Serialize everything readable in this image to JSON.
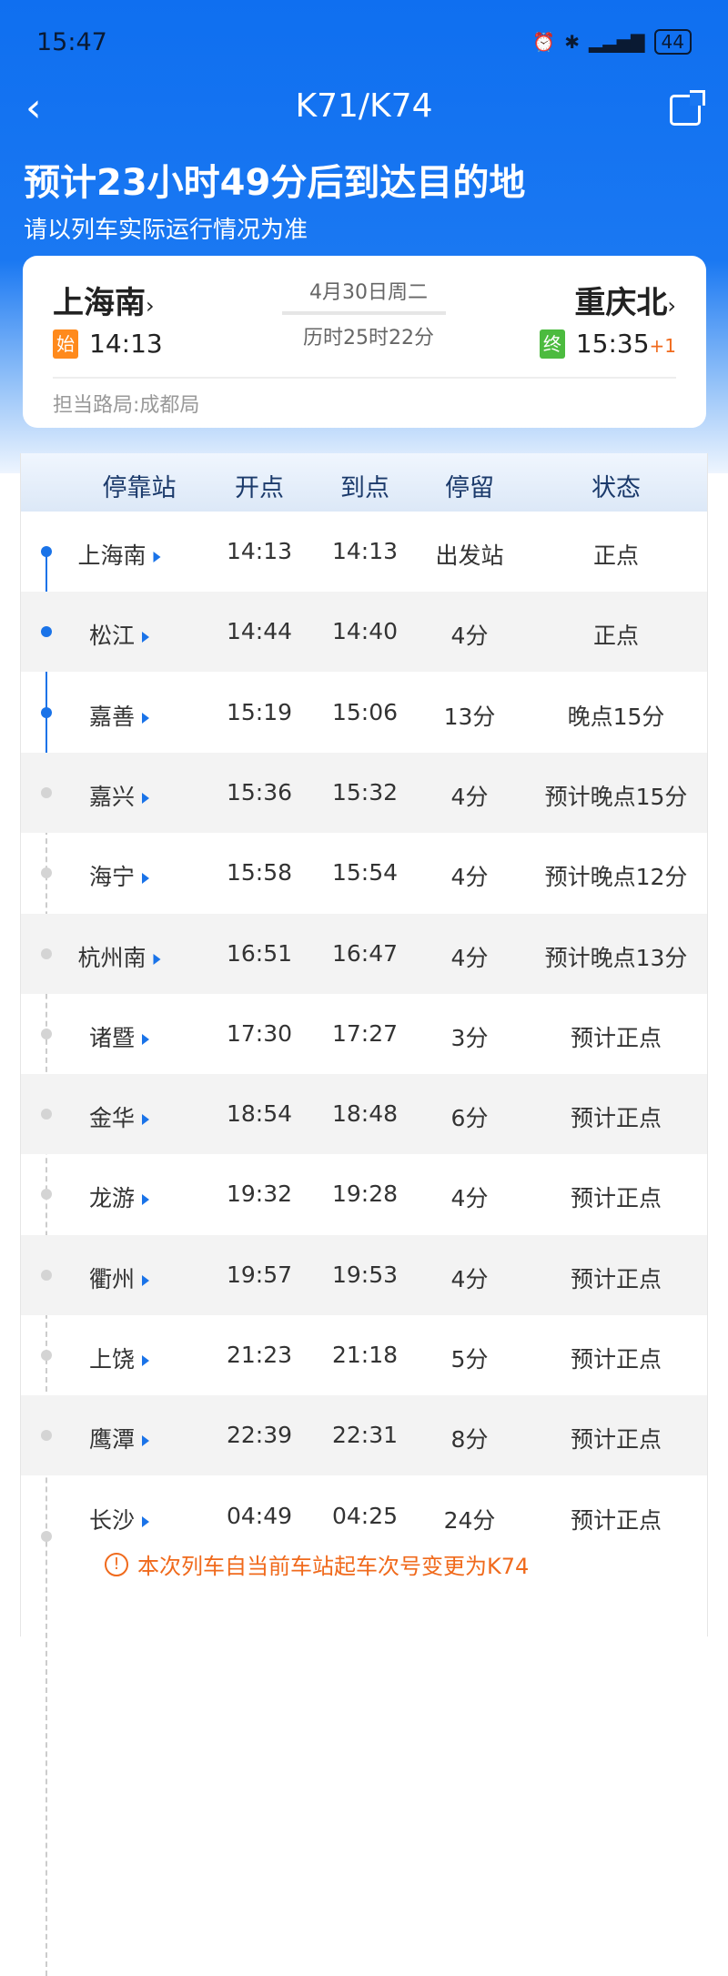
{
  "status_bar": {
    "time": "15:47",
    "battery": "44"
  },
  "header": {
    "title": "K71/K74",
    "eta": "预计23小时49分后到达目的地",
    "note": "请以列车实际运行情况为准"
  },
  "summary": {
    "from": "上海南",
    "from_tag": "始",
    "from_time": "14:13",
    "date": "4月30日周二",
    "duration": "历时25时22分",
    "to": "重庆北",
    "to_tag": "终",
    "to_time": "15:35",
    "to_day_offset": "+1",
    "bureau": "担当路局:成都局"
  },
  "table": {
    "headers": [
      "停靠站",
      "开点",
      "到点",
      "停留",
      "状态"
    ],
    "rows": [
      {
        "station": "上海南",
        "dep": "14:13",
        "arr": "14:13",
        "stay": "出发站",
        "status": "正点",
        "late": false,
        "passed": true
      },
      {
        "station": "松江",
        "dep": "14:44",
        "arr": "14:40",
        "stay": "4分",
        "status": "正点",
        "late": false,
        "passed": true
      },
      {
        "station": "嘉善",
        "dep": "15:19",
        "arr": "15:06",
        "stay": "13分",
        "status": "晚点15分",
        "late": true,
        "passed": true
      },
      {
        "station": "嘉兴",
        "dep": "15:36",
        "arr": "15:32",
        "stay": "4分",
        "status": "预计晚点15分",
        "late": true,
        "passed": false
      },
      {
        "station": "海宁",
        "dep": "15:58",
        "arr": "15:54",
        "stay": "4分",
        "status": "预计晚点12分",
        "late": true,
        "passed": false
      },
      {
        "station": "杭州南",
        "dep": "16:51",
        "arr": "16:47",
        "stay": "4分",
        "status": "预计晚点13分",
        "late": true,
        "passed": false
      },
      {
        "station": "诸暨",
        "dep": "17:30",
        "arr": "17:27",
        "stay": "3分",
        "status": "预计正点",
        "late": false,
        "passed": false
      },
      {
        "station": "金华",
        "dep": "18:54",
        "arr": "18:48",
        "stay": "6分",
        "status": "预计正点",
        "late": false,
        "passed": false
      },
      {
        "station": "龙游",
        "dep": "19:32",
        "arr": "19:28",
        "stay": "4分",
        "status": "预计正点",
        "late": false,
        "passed": false
      },
      {
        "station": "衢州",
        "dep": "19:57",
        "arr": "19:53",
        "stay": "4分",
        "status": "预计正点",
        "late": false,
        "passed": false
      },
      {
        "station": "上饶",
        "dep": "21:23",
        "arr": "21:18",
        "stay": "5分",
        "status": "预计正点",
        "late": false,
        "passed": false
      },
      {
        "station": "鹰潭",
        "dep": "22:39",
        "arr": "22:31",
        "stay": "8分",
        "status": "预计正点",
        "late": false,
        "passed": false
      },
      {
        "station": "长沙",
        "dep": "04:49",
        "arr": "04:25",
        "stay": "24分",
        "status": "预计正点",
        "late": false,
        "passed": false
      }
    ],
    "notice": "本次列车自当前车站起车次号变更为K74"
  },
  "colors": {
    "primary": "#1a73e8",
    "late": "#e53935",
    "notice": "#f06a1c",
    "start_tag": "#ff8a1c",
    "end_tag": "#4cbb3f"
  }
}
